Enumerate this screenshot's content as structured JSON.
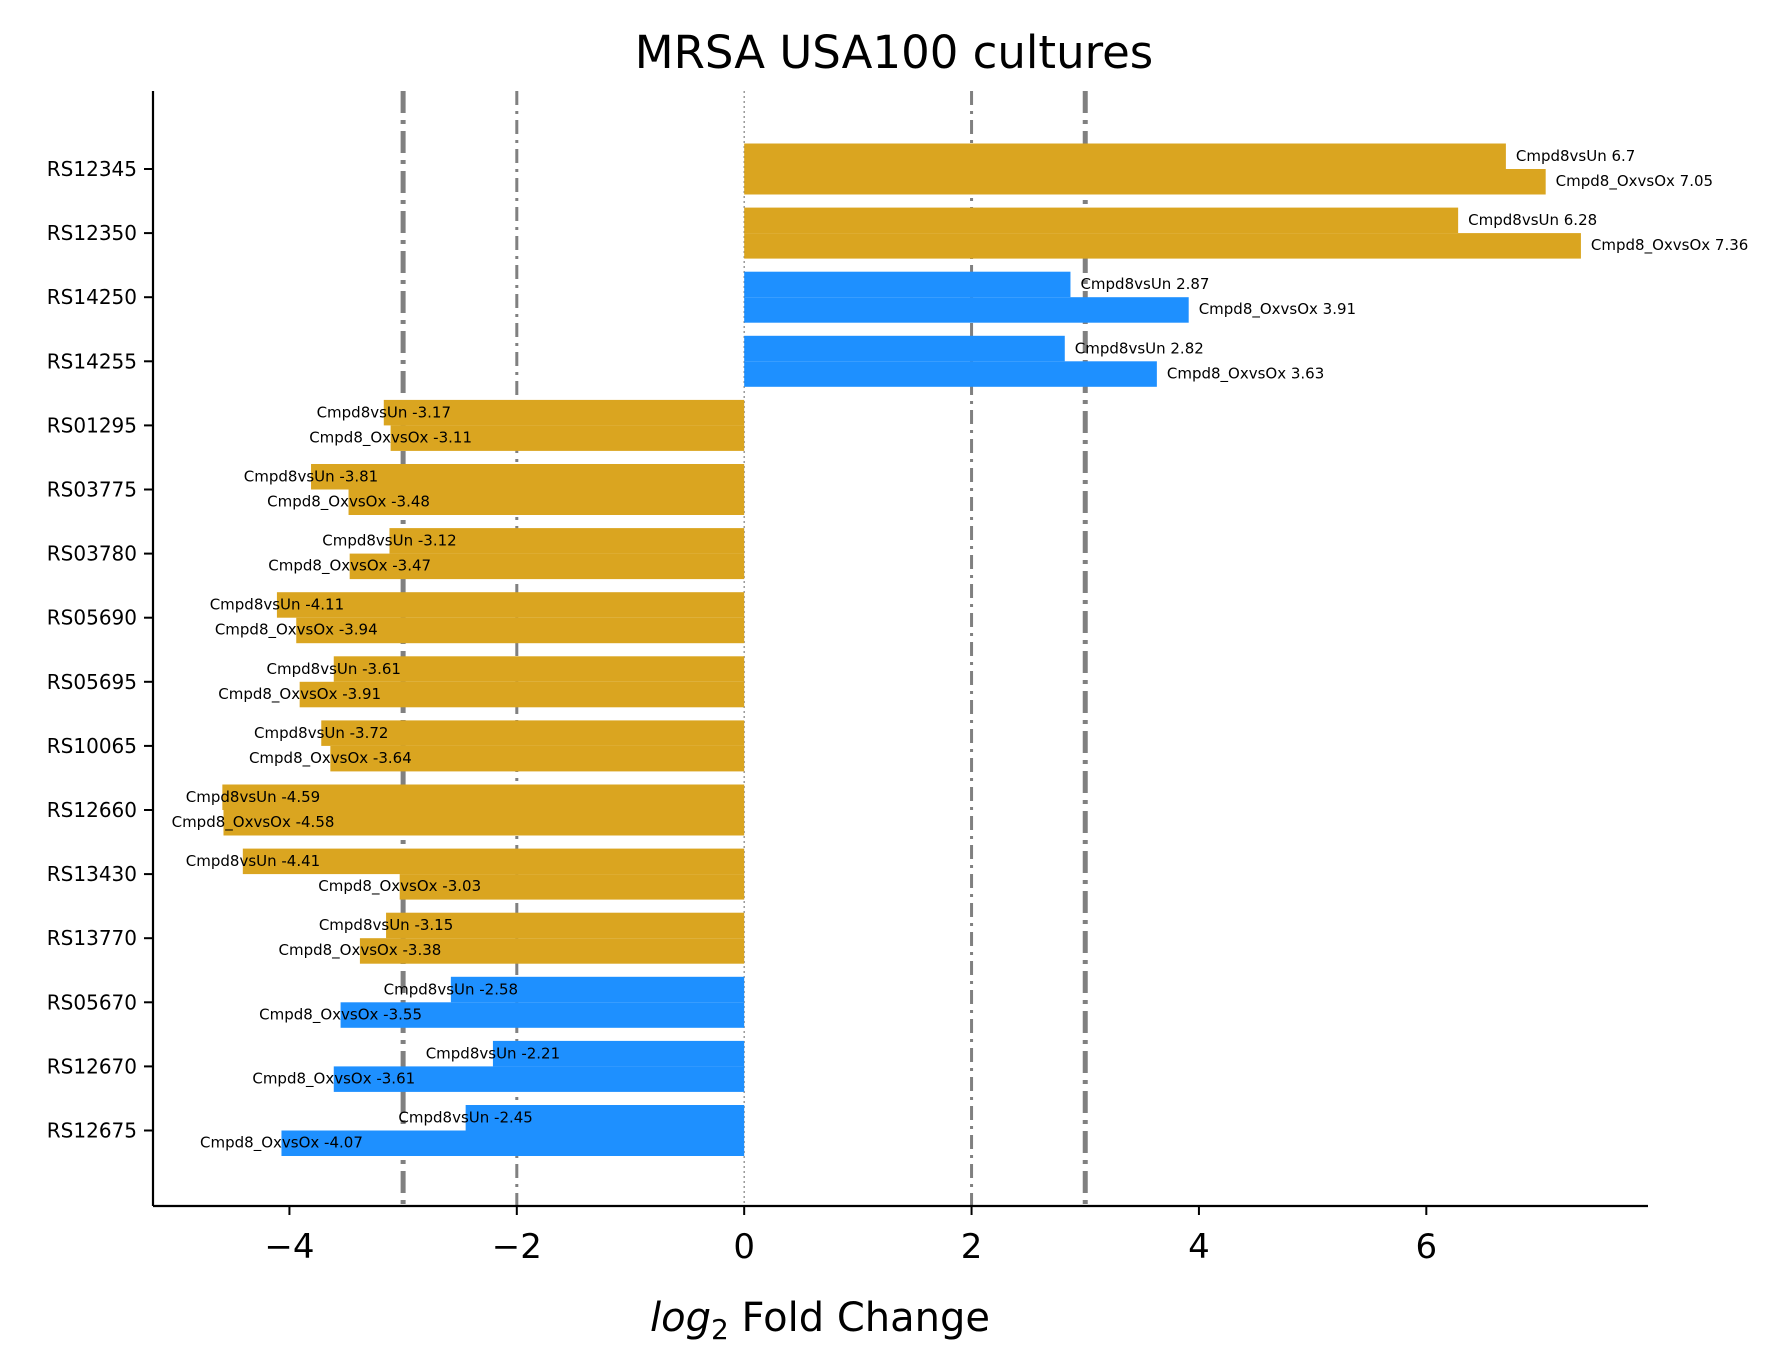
{
  "chart_data": {
    "type": "bar",
    "orientation": "horizontal",
    "title": "MRSA USA100 cultures",
    "xlabel_italic": "log",
    "xlabel_subscript": "2",
    "xlabel_rest": " Fold Change",
    "xlim": [
      -5.2,
      7.95
    ],
    "xticks": [
      -4,
      -2,
      0,
      2,
      4,
      6
    ],
    "xtick_labels": [
      "−4",
      "−2",
      "0",
      "2",
      "4",
      "6"
    ],
    "reference_lines": [
      {
        "x": -3,
        "style": "thick-dashdot"
      },
      {
        "x": -2,
        "style": "thin-dashdot"
      },
      {
        "x": 0,
        "style": "dotted"
      },
      {
        "x": 2,
        "style": "thin-dashdot"
      },
      {
        "x": 3,
        "style": "thick-dashdot"
      }
    ],
    "colors": {
      "gold": "#DAA520",
      "blue": "#1E90FF",
      "refline": "#808080"
    },
    "series_names": [
      "Cmpd8vsUn",
      "Cmpd8_OxvsOx"
    ],
    "categories": [
      "RS12345",
      "RS12350",
      "RS14250",
      "RS14255",
      "RS01295",
      "RS03775",
      "RS03780",
      "RS05690",
      "RS05695",
      "RS10065",
      "RS12660",
      "RS13430",
      "RS13770",
      "RS05670",
      "RS12670",
      "RS12675"
    ],
    "bar_colors": [
      "gold",
      "gold",
      "blue",
      "blue",
      "gold",
      "gold",
      "gold",
      "gold",
      "gold",
      "gold",
      "gold",
      "gold",
      "gold",
      "blue",
      "blue",
      "blue"
    ],
    "series": [
      {
        "name": "Cmpd8vsUn",
        "values": [
          6.7,
          6.28,
          2.87,
          2.82,
          -3.17,
          -3.81,
          -3.12,
          -4.11,
          -3.61,
          -3.72,
          -4.59,
          -4.41,
          -3.15,
          -2.58,
          -2.21,
          -2.45
        ]
      },
      {
        "name": "Cmpd8_OxvsOx",
        "values": [
          7.05,
          7.36,
          3.91,
          3.63,
          -3.11,
          -3.48,
          -3.47,
          -3.94,
          -3.91,
          -3.64,
          -4.58,
          -3.03,
          -3.38,
          -3.55,
          -3.61,
          -4.07
        ]
      }
    ],
    "bar_labels_series0": [
      "Cmpd8vsUn 6.7",
      "Cmpd8vsUn 6.28",
      "Cmpd8vsUn 2.87",
      "Cmpd8vsUn 2.82",
      "Cmpd8vsUn -3.17",
      "Cmpd8vsUn -3.81",
      "Cmpd8vsUn -3.12",
      "Cmpd8vsUn -4.11",
      "Cmpd8vsUn -3.61",
      "Cmpd8vsUn -3.72",
      "Cmpd8vsUn -4.59",
      "Cmpd8vsUn -4.41",
      "Cmpd8vsUn -3.15",
      "Cmpd8vsUn -2.58",
      "Cmpd8vsUn -2.21",
      "Cmpd8vsUn -2.45"
    ],
    "bar_labels_series1": [
      "Cmpd8_OxvsOx 7.05",
      "Cmpd8_OxvsOx 7.36",
      "Cmpd8_OxvsOx 3.91",
      "Cmpd8_OxvsOx 3.63",
      "Cmpd8_OxvsOx -3.11",
      "Cmpd8_OxvsOx -3.48",
      "Cmpd8_OxvsOx -3.47",
      "Cmpd8_OxvsOx -3.94",
      "Cmpd8_OxvsOx -3.91",
      "Cmpd8_OxvsOx -3.64",
      "Cmpd8_OxvsOx -4.58",
      "Cmpd8_OxvsOx -3.03",
      "Cmpd8_OxvsOx -3.38",
      "Cmpd8_OxvsOx -3.55",
      "Cmpd8_OxvsOx -3.61",
      "Cmpd8_OxvsOx -4.07"
    ],
    "grid": false,
    "legend": "none"
  }
}
